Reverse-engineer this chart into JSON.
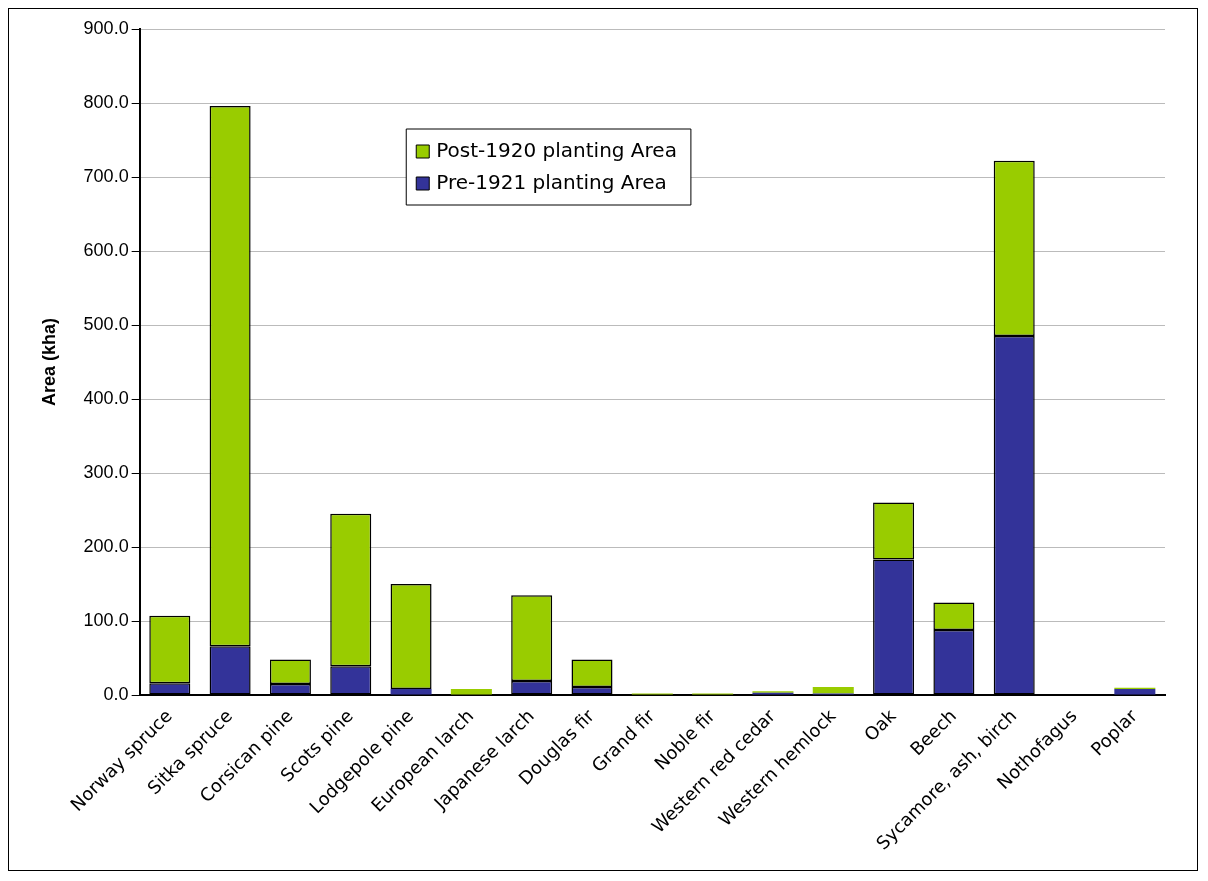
{
  "chart_data": {
    "type": "bar",
    "stacked": true,
    "ylabel": "Area (kha)",
    "categories": [
      "Norway spruce",
      "Sitka spruce",
      "Corsican pine",
      "Scots pine",
      "Lodgepole pine",
      "European larch",
      "Japanese larch",
      "Douglas fir",
      "Grand fir",
      "Noble fir",
      "Western red cedar",
      "Western hemlock",
      "Oak",
      "Beech",
      "Sycamore, ash, birch",
      "Nothofagus",
      "Poplar"
    ],
    "series": [
      {
        "name": "Pre-1921 planting Area",
        "color": "#333399",
        "values": [
          16,
          66,
          15,
          39,
          8,
          null,
          19,
          11,
          null,
          null,
          3,
          2,
          183,
          88,
          485,
          0,
          8
        ]
      },
      {
        "name": "Post-1920 planting Area",
        "color": "#99cc00",
        "values": [
          91,
          730,
          33,
          206,
          142,
          8,
          116,
          37,
          2,
          2,
          2,
          9,
          77,
          37,
          237,
          0,
          2
        ]
      }
    ],
    "ylim": [
      0,
      900
    ],
    "yticks": [
      {
        "value": 0,
        "label": "0.0"
      },
      {
        "value": 100,
        "label": "100.0"
      },
      {
        "value": 200,
        "label": "200.0"
      },
      {
        "value": 300,
        "label": "300.0"
      },
      {
        "value": 400,
        "label": "400.0"
      },
      {
        "value": 500,
        "label": "500.0"
      },
      {
        "value": 600,
        "label": "600.0"
      },
      {
        "value": 700,
        "label": "700.0"
      },
      {
        "value": 800,
        "label": "800.0"
      },
      {
        "value": 900,
        "label": "900.0"
      }
    ],
    "grid": "y",
    "legend": "top"
  }
}
